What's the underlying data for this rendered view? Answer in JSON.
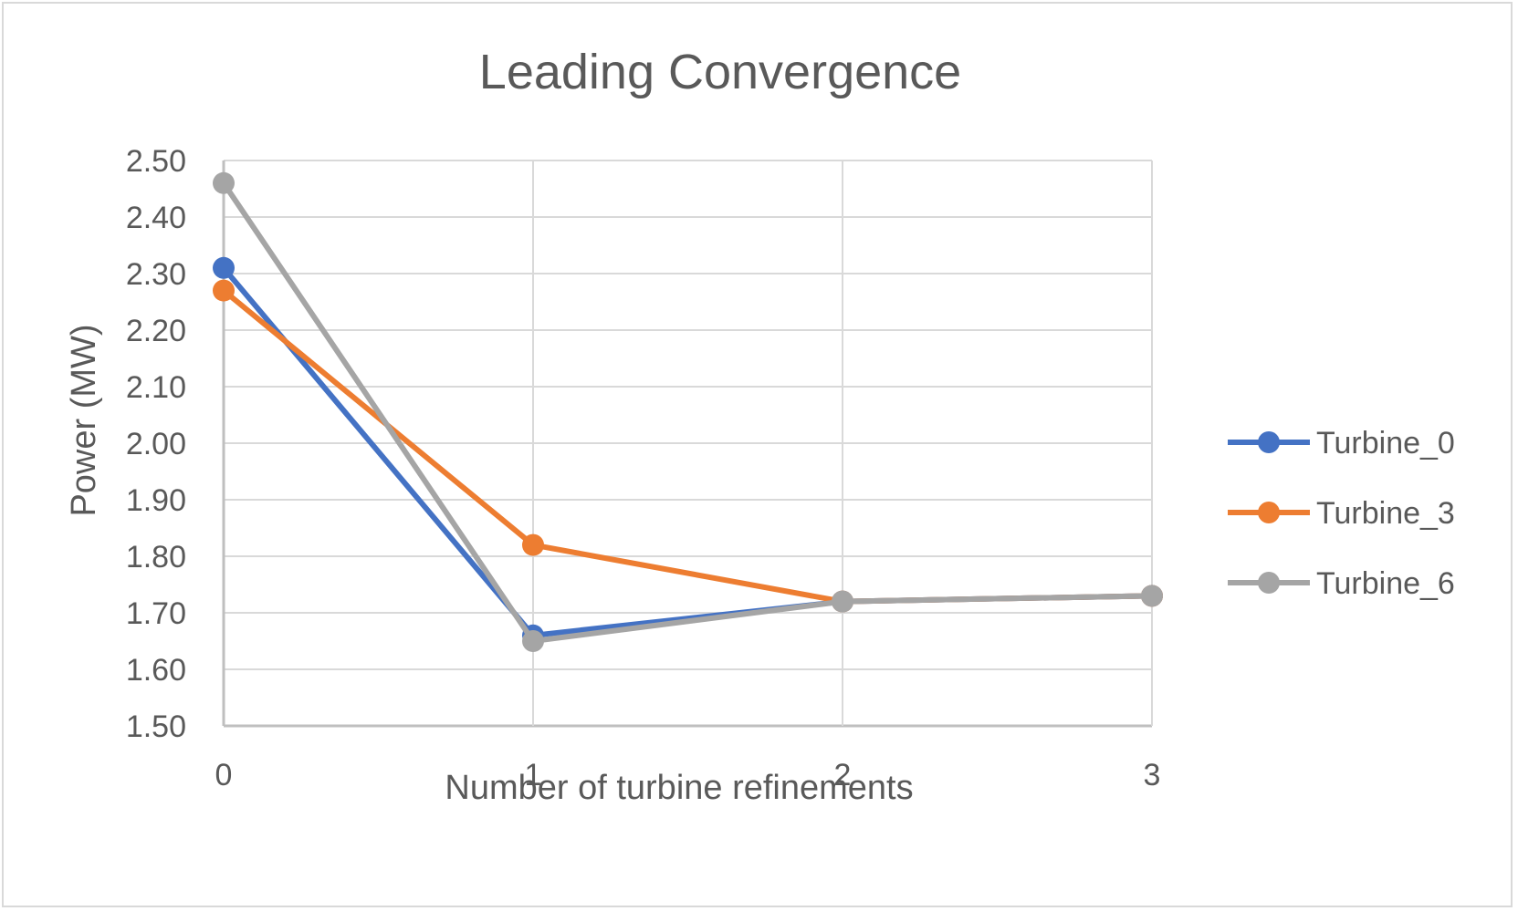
{
  "chart_data": {
    "type": "line",
    "title": "Leading Convergence",
    "xlabel": "Number of turbine refinements",
    "ylabel": "Power (MW)",
    "x": [
      0,
      1,
      2,
      3
    ],
    "x_tick_labels": [
      "0",
      "1",
      "2",
      "3"
    ],
    "ylim": [
      1.5,
      2.5
    ],
    "y_tick_labels": [
      "2.50",
      "2.40",
      "2.30",
      "2.20",
      "2.10",
      "2.00",
      "1.90",
      "1.80",
      "1.70",
      "1.60",
      "1.50"
    ],
    "grid": true,
    "legend_position": "right",
    "series": [
      {
        "name": "Turbine_0",
        "color": "#4472C4",
        "values": [
          2.31,
          1.66,
          1.72,
          1.73
        ]
      },
      {
        "name": "Turbine_3",
        "color": "#ED7D31",
        "values": [
          2.27,
          1.82,
          1.72,
          1.73
        ]
      },
      {
        "name": "Turbine_6",
        "color": "#A5A5A5",
        "values": [
          2.46,
          1.65,
          1.72,
          1.73
        ]
      }
    ]
  }
}
